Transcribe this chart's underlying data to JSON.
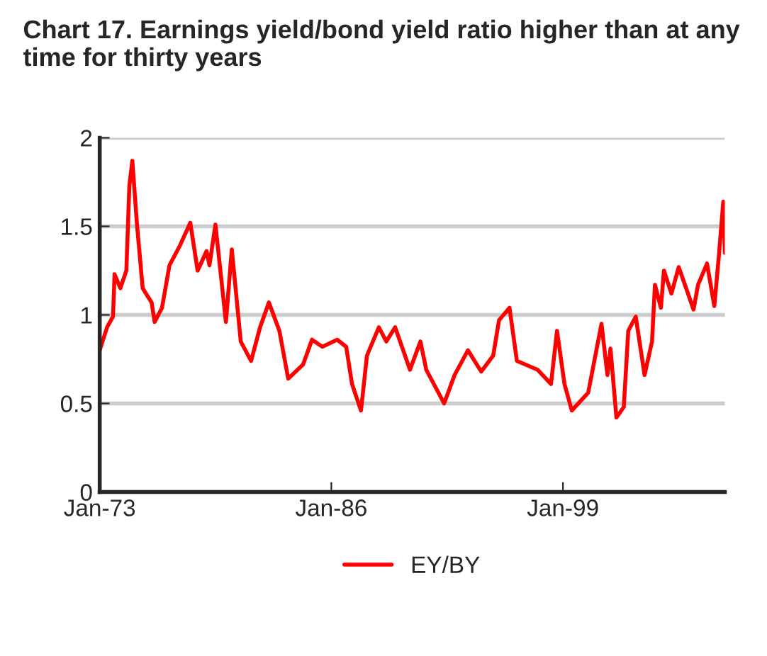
{
  "chart_data": {
    "type": "line",
    "title": "Chart 17. Earnings yield/bond yield ratio higher than at any\ntime for thirty years",
    "series": [
      {
        "name": "EY/BY",
        "color": "#ff0000",
        "x": [
          "1973-01",
          "1973-06",
          "1973-10",
          "1973-11",
          "1974-03",
          "1974-07",
          "1974-09",
          "1974-11",
          "1975-02",
          "1975-06",
          "1975-12",
          "1976-02",
          "1976-07",
          "1976-12",
          "1977-07",
          "1978-02",
          "1978-07",
          "1979-01",
          "1979-03",
          "1979-07",
          "1980-02",
          "1980-06",
          "1980-12",
          "1981-07",
          "1982-01",
          "1982-07",
          "1983-02",
          "1983-08",
          "1984-06",
          "1984-12",
          "1985-07",
          "1986-05",
          "1986-11",
          "1987-03",
          "1987-09",
          "1988-01",
          "1988-09",
          "1989-02",
          "1989-08",
          "1990-06",
          "1991-01",
          "1991-05",
          "1992-05",
          "1992-12",
          "1993-09",
          "1994-06",
          "1995-02",
          "1995-06",
          "1996-01",
          "1996-06",
          "1997-08",
          "1998-05",
          "1998-09",
          "1999-02",
          "1999-07",
          "2000-06",
          "2001-03",
          "2001-07",
          "2001-09",
          "2002-01",
          "2002-06",
          "2002-09",
          "2003-02",
          "2003-08",
          "2004-01",
          "2004-03",
          "2004-07",
          "2004-09",
          "2005-02",
          "2005-07",
          "2005-12",
          "2006-05",
          "2006-08",
          "2007-02",
          "2007-07",
          "2007-10",
          "2008-01",
          "2008-02"
        ],
        "values": [
          0.8,
          0.93,
          0.99,
          1.23,
          1.15,
          1.25,
          1.73,
          1.87,
          1.52,
          1.15,
          1.07,
          0.96,
          1.04,
          1.28,
          1.39,
          1.52,
          1.25,
          1.36,
          1.28,
          1.51,
          0.96,
          1.37,
          0.85,
          0.74,
          0.93,
          1.07,
          0.91,
          0.64,
          0.72,
          0.86,
          0.82,
          0.86,
          0.82,
          0.61,
          0.46,
          0.77,
          0.93,
          0.85,
          0.93,
          0.69,
          0.85,
          0.69,
          0.5,
          0.66,
          0.8,
          0.68,
          0.77,
          0.97,
          1.04,
          0.74,
          0.69,
          0.61,
          0.91,
          0.61,
          0.46,
          0.56,
          0.95,
          0.66,
          0.81,
          0.42,
          0.48,
          0.91,
          0.99,
          0.66,
          0.85,
          1.17,
          1.04,
          1.25,
          1.12,
          1.27,
          1.15,
          1.03,
          1.17,
          1.29,
          1.05,
          1.33,
          1.64,
          1.35
        ]
      }
    ],
    "xlim": [
      "1973-01",
      "2008-02"
    ],
    "xticks": [
      {
        "value": "1973-01",
        "label": "Jan-73"
      },
      {
        "value": "1986-01",
        "label": "Jan-86"
      },
      {
        "value": "1999-01",
        "label": "Jan-99"
      }
    ],
    "ylim": [
      0,
      2
    ],
    "yticks": [
      0,
      0.5,
      1,
      1.5,
      2
    ],
    "grid": "y",
    "legend": "bottom",
    "line_style": "solid"
  }
}
